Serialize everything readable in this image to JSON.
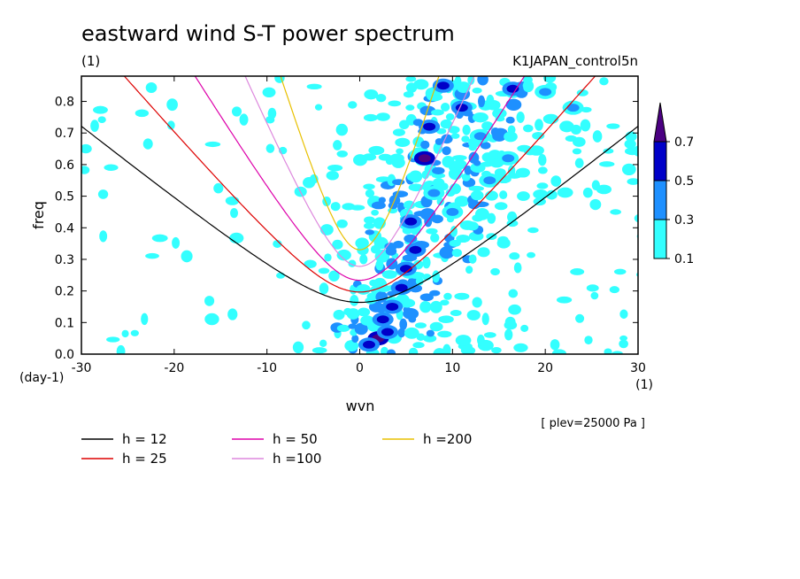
{
  "header": {
    "title": "eastward wind S-T power spectrum",
    "subtitle_left": "(1)",
    "subtitle_right": "K1JAPAN_control5n",
    "plev_label": "[ plev=25000 Pa ]"
  },
  "chart_data": {
    "type": "heatmap",
    "title": "eastward wind S-T power spectrum",
    "subtitle": "(1)",
    "run_label": "K1JAPAN_control5n",
    "xlabel": "wvn",
    "ylabel": "freq",
    "x_unit": "(1)",
    "y_unit": "(day-1)",
    "xlim": [
      -30,
      30
    ],
    "ylim": [
      0.0,
      0.88
    ],
    "x_ticks": [
      -30,
      -20,
      -10,
      0,
      10,
      20,
      30
    ],
    "x_tick_labels": [
      "-30",
      "-20",
      "-10",
      "0",
      "10",
      "20",
      "30"
    ],
    "y_ticks": [
      0.0,
      0.1,
      0.2,
      0.3,
      0.4,
      0.5,
      0.6,
      0.7,
      0.8
    ],
    "y_tick_labels": [
      "0.0",
      "0.1",
      "0.2",
      "0.3",
      "0.4",
      "0.5",
      "0.6",
      "0.7",
      "0.8"
    ],
    "colorbar": {
      "levels": [
        0.1,
        0.3,
        0.5,
        0.7
      ],
      "level_labels": [
        "0.1",
        "0.3",
        "0.5",
        "0.7"
      ],
      "colors": [
        "#33ffff",
        "#1e90ff",
        "#0000c8",
        "#4b0082"
      ]
    },
    "power_blobs": [
      {
        "x": 2.0,
        "y": 0.05,
        "level": 3
      },
      {
        "x": 2.5,
        "y": 0.11,
        "level": 2
      },
      {
        "x": 3.5,
        "y": 0.15,
        "level": 2
      },
      {
        "x": 4.5,
        "y": 0.21,
        "level": 2
      },
      {
        "x": 3.0,
        "y": 0.07,
        "level": 2
      },
      {
        "x": 1.0,
        "y": 0.03,
        "level": 2
      },
      {
        "x": 5.0,
        "y": 0.27,
        "level": 2
      },
      {
        "x": 6.0,
        "y": 0.33,
        "level": 2
      },
      {
        "x": 5.5,
        "y": 0.42,
        "level": 2
      },
      {
        "x": 7.0,
        "y": 0.62,
        "level": 3
      },
      {
        "x": 7.5,
        "y": 0.72,
        "level": 2
      },
      {
        "x": 9.0,
        "y": 0.85,
        "level": 2
      },
      {
        "x": 8.0,
        "y": 0.51,
        "level": 1
      },
      {
        "x": 11.0,
        "y": 0.78,
        "level": 2
      },
      {
        "x": 13.0,
        "y": 0.69,
        "level": 1
      },
      {
        "x": 16.0,
        "y": 0.62,
        "level": 1
      },
      {
        "x": 16.5,
        "y": 0.84,
        "level": 2
      },
      {
        "x": 20.0,
        "y": 0.83,
        "level": 1
      },
      {
        "x": 23.0,
        "y": 0.78,
        "level": 1
      },
      {
        "x": 10.0,
        "y": 0.45,
        "level": 1
      },
      {
        "x": 14.0,
        "y": 0.55,
        "level": 1
      }
    ],
    "dispersion_series": [
      {
        "name": "h = 12",
        "equivalent_depth_m": 12,
        "color": "#000000"
      },
      {
        "name": "h = 25",
        "equivalent_depth_m": 25,
        "color": "#dd0000"
      },
      {
        "name": "h = 50",
        "equivalent_depth_m": 50,
        "color": "#dd00aa"
      },
      {
        "name": "h =100",
        "equivalent_depth_m": 100,
        "color": "#dd88dd"
      },
      {
        "name": "h =200",
        "equivalent_depth_m": 200,
        "color": "#e8c000"
      }
    ]
  }
}
